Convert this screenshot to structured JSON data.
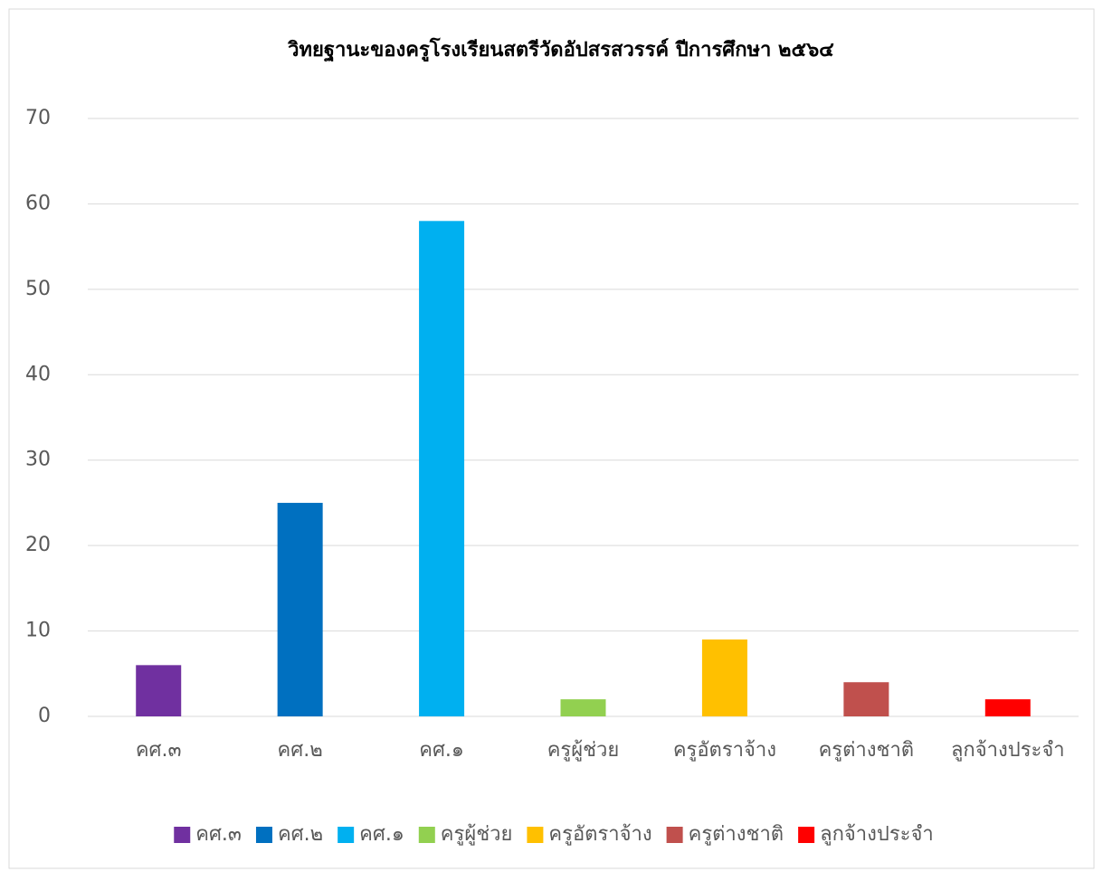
{
  "chart_data": {
    "type": "bar",
    "title": "วิทยฐานะของครูโรงเรียนสตรีวัดอัปสรสวรรค์ ปีการศึกษา ๒๕๖๔",
    "categories": [
      "คศ.๓",
      "คศ.๒",
      "คศ.๑",
      "ครูผู้ช่วย",
      "ครูอัตราจ้าง",
      "ครูต่างชาติ",
      "ลูกจ้างประจำ"
    ],
    "values": [
      6,
      25,
      58,
      2,
      9,
      4,
      2
    ],
    "colors": [
      "#7030a0",
      "#0070c0",
      "#00b0f0",
      "#92d050",
      "#ffc000",
      "#c0504d",
      "#ff0000"
    ],
    "ylim": [
      0,
      70
    ],
    "yticks": [
      0,
      10,
      20,
      30,
      40,
      50,
      60,
      70
    ],
    "grid": true,
    "legend": "bottom"
  }
}
